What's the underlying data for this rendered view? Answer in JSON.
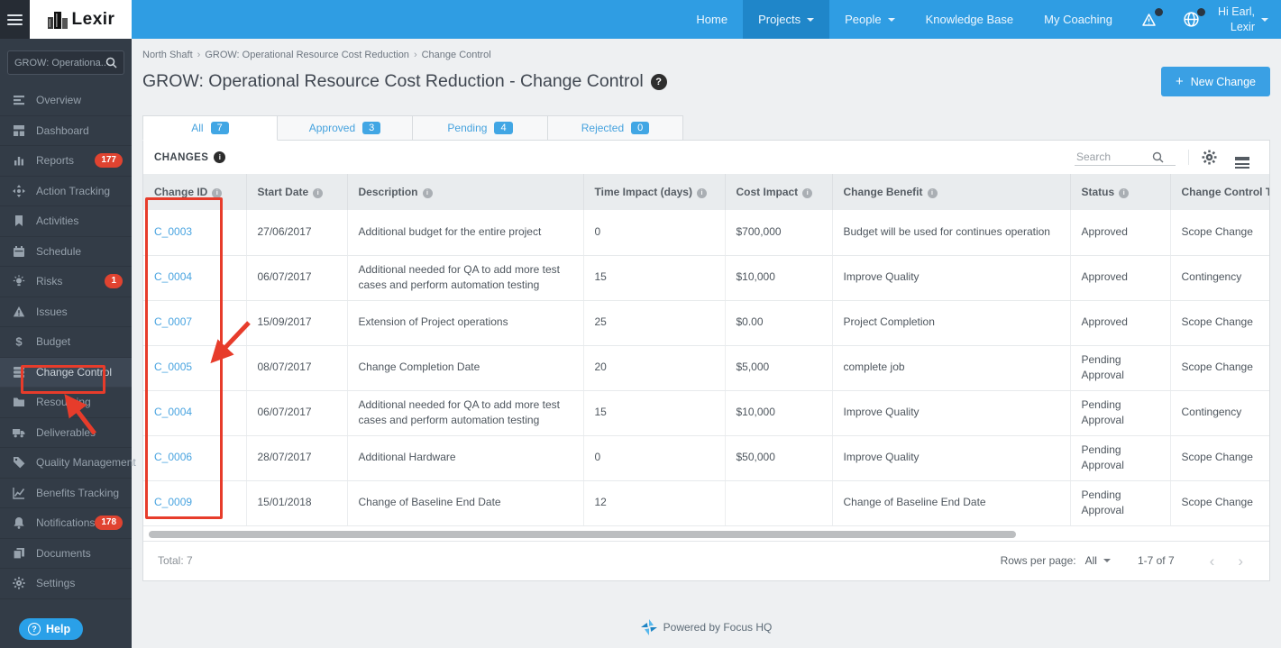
{
  "topnav": {
    "brand": "Lexir",
    "items": [
      {
        "label": "Home",
        "active": false,
        "dropdown": false
      },
      {
        "label": "Projects",
        "active": true,
        "dropdown": true
      },
      {
        "label": "People",
        "active": false,
        "dropdown": true
      },
      {
        "label": "Knowledge Base",
        "active": false,
        "dropdown": false
      },
      {
        "label": "My Coaching",
        "active": false,
        "dropdown": false
      }
    ],
    "icons": [
      {
        "name": "alerts-warning-icon",
        "has_badge_dot": true
      },
      {
        "name": "globe-icon",
        "has_badge_dot": true
      }
    ],
    "greeting_line1": "Hi Earl,",
    "greeting_line2": "Lexir"
  },
  "sidebar": {
    "search_value": "GROW: Operationa...",
    "items": [
      {
        "label": "Overview",
        "icon": "overview-icon"
      },
      {
        "label": "Dashboard",
        "icon": "dashboard-icon"
      },
      {
        "label": "Reports",
        "icon": "reports-icon",
        "badge": "177"
      },
      {
        "label": "Action Tracking",
        "icon": "action-tracking-icon"
      },
      {
        "label": "Activities",
        "icon": "activities-icon"
      },
      {
        "label": "Schedule",
        "icon": "schedule-icon"
      },
      {
        "label": "Risks",
        "icon": "risks-icon",
        "badge": "1"
      },
      {
        "label": "Issues",
        "icon": "issues-icon"
      },
      {
        "label": "Budget",
        "icon": "budget-icon"
      },
      {
        "label": "Change Control",
        "icon": "change-control-icon",
        "active": true
      },
      {
        "label": "Resourcing",
        "icon": "resourcing-icon"
      },
      {
        "label": "Deliverables",
        "icon": "deliverables-icon"
      },
      {
        "label": "Quality Management",
        "icon": "quality-management-icon"
      },
      {
        "label": "Benefits Tracking",
        "icon": "benefits-tracking-icon"
      },
      {
        "label": "Notifications",
        "icon": "notifications-icon",
        "badge": "178"
      },
      {
        "label": "Documents",
        "icon": "documents-icon"
      },
      {
        "label": "Settings",
        "icon": "settings-icon"
      }
    ],
    "help_label": "Help"
  },
  "breadcrumb": {
    "separator": "›",
    "items": [
      "North Shaft",
      "GROW: Operational Resource Cost Reduction",
      "Change Control"
    ]
  },
  "page": {
    "title": "GROW: Operational Resource Cost Reduction - Change Control",
    "new_change_label": "New Change"
  },
  "tabs": [
    {
      "label": "All",
      "count": "7",
      "active": true
    },
    {
      "label": "Approved",
      "count": "3",
      "active": false
    },
    {
      "label": "Pending",
      "count": "4",
      "active": false
    },
    {
      "label": "Rejected",
      "count": "0",
      "active": false
    }
  ],
  "panel": {
    "title": "CHANGES",
    "search_placeholder": "Search"
  },
  "table": {
    "columns": [
      "Change ID",
      "Start Date",
      "Description",
      "Time Impact (days)",
      "Cost Impact",
      "Change Benefit",
      "Status",
      "Change Control Type"
    ],
    "rows": [
      [
        "C_0003",
        "27/06/2017",
        "Additional budget for the entire project",
        "0",
        "$700,000",
        "Budget will be used for continues operation",
        "Approved",
        "Scope Change"
      ],
      [
        "C_0004",
        "06/07/2017",
        "Additional needed for QA to add more test cases and perform automation testing",
        "15",
        "$10,000",
        "Improve Quality",
        "Approved",
        "Contingency"
      ],
      [
        "C_0007",
        "15/09/2017",
        "Extension of Project operations",
        "25",
        "$0.00",
        "Project Completion",
        "Approved",
        "Scope Change"
      ],
      [
        "C_0005",
        "08/07/2017",
        "Change Completion Date",
        "20",
        "$5,000",
        "complete job",
        "Pending Approval",
        "Scope Change"
      ],
      [
        "C_0004",
        "06/07/2017",
        "Additional needed for QA to add more test cases and perform automation testing",
        "15",
        "$10,000",
        "Improve Quality",
        "Pending Approval",
        "Contingency"
      ],
      [
        "C_0006",
        "28/07/2017",
        "Additional Hardware",
        "0",
        "$50,000",
        "Improve Quality",
        "Pending Approval",
        "Scope Change"
      ],
      [
        "C_0009",
        "15/01/2018",
        "Change of Baseline End Date",
        "12",
        "",
        "Change of Baseline End Date",
        "Pending Approval",
        "Scope Change"
      ]
    ]
  },
  "table_footer": {
    "total": "Total: 7",
    "rows_per_page_label": "Rows per page:",
    "rows_per_page_value": "All",
    "range": "1-7 of 7",
    "prev_icon": "‹",
    "next_icon": "›"
  },
  "powered_by": "Powered by Focus HQ",
  "colors": {
    "topbar_blue": "#2f9de3",
    "topbar_active_blue": "#1f86c9",
    "accent_blue": "#41a3e0",
    "link_blue": "#4aa4e0",
    "badge_red": "#e04330",
    "sidebar_bg": "#333c47",
    "annotation_red": "#e73c2b"
  }
}
